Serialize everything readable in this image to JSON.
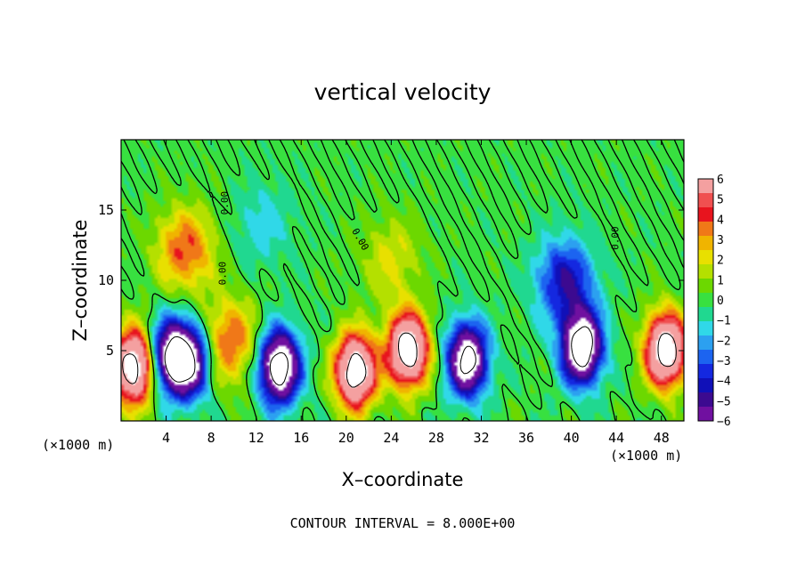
{
  "chart_data": {
    "type": "heatmap",
    "title": "vertical velocity",
    "xlabel": "X–coordinate",
    "ylabel": "Z–coordinate",
    "x_unit": "(×1000 m)",
    "y_unit": "(×1000 m)",
    "xlim": [
      0,
      50
    ],
    "ylim": [
      0,
      20
    ],
    "x_ticks": [
      4,
      8,
      12,
      16,
      20,
      24,
      28,
      32,
      36,
      40,
      44,
      48
    ],
    "y_ticks": [
      5,
      10,
      15
    ],
    "colorbar": {
      "ticks": [
        6,
        5,
        4,
        3,
        2,
        1,
        0,
        -1,
        -2,
        -3,
        -4,
        -5,
        -6
      ],
      "colors": [
        "#f4a0a0",
        "#f05050",
        "#e8141e",
        "#f07818",
        "#f0b400",
        "#e8e000",
        "#b4e000",
        "#6cd800",
        "#38e040",
        "#20d890",
        "#30d8e8",
        "#2ca0f0",
        "#1c64f0",
        "#1428e0",
        "#1010b8",
        "#3c0a90",
        "#7010a0"
      ],
      "range": [
        -6,
        6
      ]
    },
    "contour_labels": [
      "0.00",
      "0.00",
      "0.00",
      "0.00"
    ],
    "footer": "CONTOUR INTERVAL = 8.000E+00",
    "features": [
      {
        "x": 1.0,
        "z": 3.8,
        "w": 10
      },
      {
        "x": 4.2,
        "z": 4.6,
        "w": -7
      },
      {
        "x": 6.0,
        "z": 4.2,
        "w": -8
      },
      {
        "x": 5.6,
        "z": 12.2,
        "w": 4
      },
      {
        "x": 9.5,
        "z": 5.6,
        "w": 4
      },
      {
        "x": 14.0,
        "z": 3.8,
        "w": -10
      },
      {
        "x": 20.8,
        "z": 3.5,
        "w": 10
      },
      {
        "x": 25.5,
        "z": 5.0,
        "w": 10
      },
      {
        "x": 30.8,
        "z": 4.3,
        "w": -9
      },
      {
        "x": 39.5,
        "z": 10.0,
        "w": -4.5
      },
      {
        "x": 41.0,
        "z": 5.2,
        "w": -10
      },
      {
        "x": 48.5,
        "z": 5.0,
        "w": 10
      },
      {
        "x": 12.5,
        "z": 14.0,
        "w": -1.5
      },
      {
        "x": 24.0,
        "z": 11.5,
        "w": 2
      }
    ]
  }
}
